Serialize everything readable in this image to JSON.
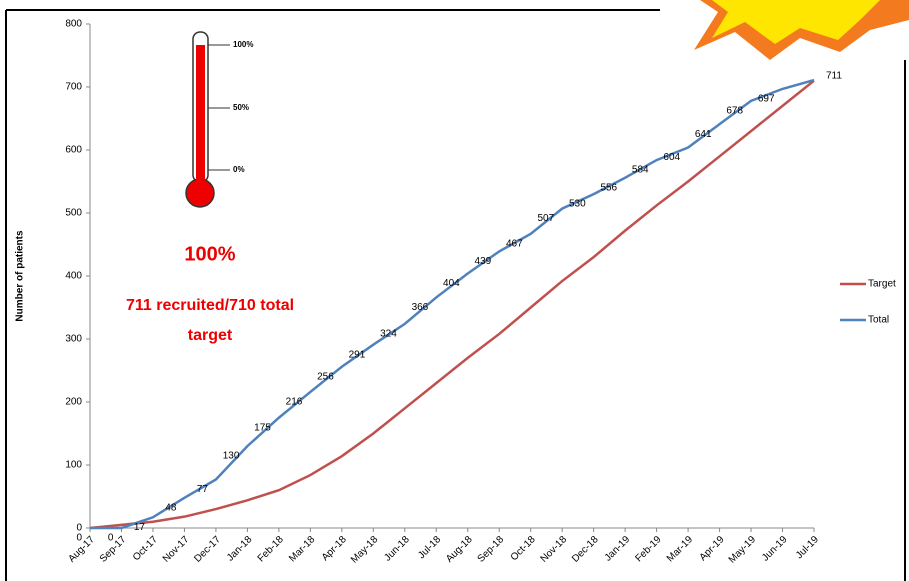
{
  "chart_data": {
    "type": "line",
    "y_label": "Number of patients",
    "categories": [
      "Aug-17",
      "Sep-17",
      "Oct-17",
      "Nov-17",
      "Dec-17",
      "Jan-18",
      "Feb-18",
      "Mar-18",
      "Apr-18",
      "May-18",
      "Jun-18",
      "Jul-18",
      "Aug-18",
      "Sep-18",
      "Oct-18",
      "Nov-18",
      "Dec-18",
      "Jan-19",
      "Feb-19",
      "Mar-19",
      "Apr-19",
      "May-19",
      "Jun-19",
      "Jul-19"
    ],
    "series": [
      {
        "name": "Target",
        "color": "#c0504d",
        "values": [
          0,
          5,
          10,
          18,
          30,
          44,
          60,
          84,
          114,
          150,
          190,
          230,
          270,
          308,
          350,
          392,
          430,
          472,
          512,
          550,
          590,
          630,
          670,
          710
        ]
      },
      {
        "name": "Total",
        "color": "#4f81bd",
        "values": [
          0,
          0,
          17,
          48,
          77,
          130,
          175,
          216,
          256,
          291,
          324,
          366,
          404,
          439,
          467,
          507,
          530,
          556,
          584,
          604,
          641,
          678,
          697,
          711
        ],
        "show_labels": true
      }
    ],
    "ylim": [
      0,
      800
    ],
    "yticks": [
      0,
      100,
      200,
      300,
      400,
      500,
      600,
      700,
      800
    ],
    "legend": "right",
    "annotations": {
      "percent": "100%",
      "recruited": "711 recruited/710 total",
      "target": "target",
      "thermometer_ticks": [
        "100%",
        "50%",
        "0%"
      ]
    }
  }
}
